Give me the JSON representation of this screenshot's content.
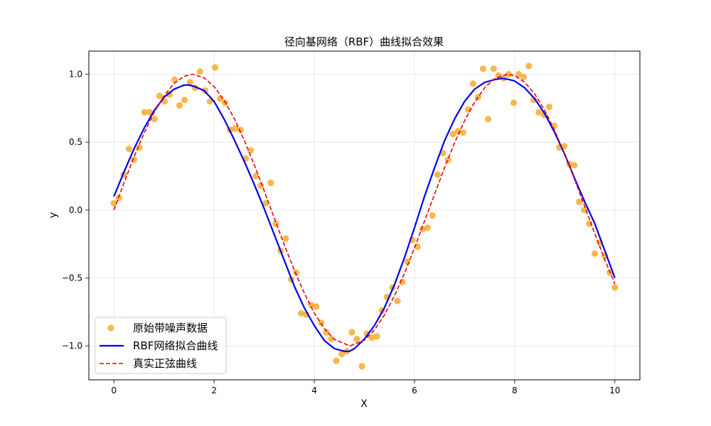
{
  "chart_data": {
    "type": "line",
    "title": "径向基网络（RBF）曲线拟合效果",
    "xlabel": "X",
    "ylabel": "y",
    "xlim": [
      -0.5,
      10.5
    ],
    "ylim": [
      -1.25,
      1.17
    ],
    "xticks": [
      0,
      2,
      4,
      6,
      8,
      10
    ],
    "xtick_labels": [
      "0",
      "2",
      "4",
      "6",
      "8",
      "10"
    ],
    "yticks": [
      -1.0,
      -0.5,
      0.0,
      0.5,
      1.0
    ],
    "ytick_labels": [
      "−1.0",
      "−0.5",
      "0.0",
      "0.5",
      "1.0"
    ],
    "grid": true,
    "legend_position": "lower-left",
    "colors": {
      "scatter": "#f5a623",
      "rbf": "#0000ee",
      "true": "#ee0000"
    },
    "legend": [
      {
        "label": "原始带噪声数据",
        "style": "scatter"
      },
      {
        "label": "RBF网络拟合曲线",
        "style": "rbf"
      },
      {
        "label": "真实正弦曲线",
        "style": "true"
      }
    ],
    "series": [
      {
        "name": "原始带噪声数据",
        "style": "scatter",
        "x": [
          0.0,
          0.1,
          0.2,
          0.3,
          0.4,
          0.51,
          0.61,
          0.71,
          0.81,
          0.91,
          1.01,
          1.11,
          1.21,
          1.31,
          1.41,
          1.52,
          1.62,
          1.72,
          1.82,
          1.92,
          2.02,
          2.12,
          2.22,
          2.32,
          2.42,
          2.53,
          2.63,
          2.73,
          2.83,
          2.93,
          3.03,
          3.13,
          3.23,
          3.33,
          3.43,
          3.54,
          3.64,
          3.74,
          3.84,
          3.94,
          4.04,
          4.14,
          4.24,
          4.34,
          4.44,
          4.55,
          4.65,
          4.75,
          4.85,
          4.95,
          5.05,
          5.15,
          5.25,
          5.35,
          5.45,
          5.56,
          5.66,
          5.76,
          5.86,
          5.96,
          6.06,
          6.16,
          6.26,
          6.36,
          6.46,
          6.57,
          6.67,
          6.77,
          6.87,
          6.97,
          7.07,
          7.17,
          7.27,
          7.37,
          7.47,
          7.58,
          7.68,
          7.78,
          7.88,
          7.98,
          8.08,
          8.18,
          8.28,
          8.38,
          8.48,
          8.59,
          8.69,
          8.79,
          8.89,
          8.99,
          9.09,
          9.19,
          9.29,
          9.39,
          9.49,
          9.6,
          9.7,
          9.8,
          9.9,
          10.0
        ],
        "y": [
          0.05,
          0.09,
          0.26,
          0.45,
          0.37,
          0.46,
          0.72,
          0.72,
          0.67,
          0.84,
          0.8,
          0.85,
          0.96,
          0.77,
          0.81,
          0.94,
          0.9,
          1.02,
          0.88,
          0.8,
          1.05,
          0.82,
          0.79,
          0.59,
          0.6,
          0.59,
          0.38,
          0.44,
          0.25,
          0.18,
          0.05,
          0.2,
          -0.1,
          -0.3,
          -0.21,
          -0.51,
          -0.46,
          -0.76,
          -0.77,
          -0.7,
          -0.71,
          -0.83,
          -0.9,
          -0.95,
          -1.11,
          -1.06,
          -1.04,
          -0.9,
          -0.95,
          -1.15,
          -0.91,
          -0.94,
          -0.93,
          -0.74,
          -0.64,
          -0.57,
          -0.67,
          -0.53,
          -0.38,
          -0.22,
          -0.27,
          -0.14,
          -0.13,
          -0.04,
          0.26,
          0.42,
          0.37,
          0.56,
          0.58,
          0.57,
          0.74,
          0.93,
          0.83,
          1.04,
          0.67,
          1.04,
          0.99,
          0.97,
          1.0,
          0.79,
          1.0,
          0.98,
          1.06,
          0.81,
          0.72,
          0.7,
          0.76,
          0.62,
          0.46,
          0.47,
          0.34,
          0.33,
          0.06,
          0.0,
          -0.1,
          -0.32,
          -0.24,
          -0.34,
          -0.46,
          -0.57
        ]
      },
      {
        "name": "RBF网络拟合曲线",
        "style": "rbf",
        "x": [
          0.0,
          0.2,
          0.4,
          0.6,
          0.8,
          1.0,
          1.2,
          1.4,
          1.5,
          1.6,
          1.8,
          2.0,
          2.2,
          2.4,
          2.6,
          2.8,
          3.0,
          3.2,
          3.4,
          3.6,
          3.8,
          4.0,
          4.2,
          4.4,
          4.6,
          4.7,
          4.8,
          5.0,
          5.2,
          5.4,
          5.6,
          5.8,
          6.0,
          6.2,
          6.4,
          6.6,
          6.8,
          7.0,
          7.2,
          7.4,
          7.6,
          7.75,
          7.9,
          8.0,
          8.2,
          8.4,
          8.6,
          8.8,
          9.0,
          9.2,
          9.4,
          9.6,
          9.8,
          10.0
        ],
        "y": [
          0.1,
          0.28,
          0.45,
          0.6,
          0.73,
          0.83,
          0.89,
          0.92,
          0.92,
          0.91,
          0.88,
          0.8,
          0.67,
          0.52,
          0.36,
          0.19,
          0.01,
          -0.18,
          -0.37,
          -0.56,
          -0.72,
          -0.85,
          -0.96,
          -1.02,
          -1.04,
          -1.04,
          -1.02,
          -0.95,
          -0.85,
          -0.72,
          -0.55,
          -0.35,
          -0.13,
          0.1,
          0.31,
          0.51,
          0.67,
          0.8,
          0.89,
          0.94,
          0.96,
          0.97,
          0.96,
          0.95,
          0.9,
          0.82,
          0.71,
          0.57,
          0.41,
          0.23,
          0.06,
          -0.1,
          -0.3,
          -0.5
        ]
      },
      {
        "name": "真实正弦曲线",
        "style": "true",
        "x": [
          0.0,
          0.2,
          0.4,
          0.6,
          0.8,
          1.0,
          1.2,
          1.4,
          1.5708,
          1.8,
          2.0,
          2.2,
          2.4,
          2.6,
          2.8,
          3.0,
          3.1416,
          3.4,
          3.6,
          3.8,
          4.0,
          4.2,
          4.4,
          4.7124,
          5.0,
          5.2,
          5.4,
          5.6,
          5.8,
          6.0,
          6.2832,
          6.6,
          6.8,
          7.0,
          7.2,
          7.4,
          7.6,
          7.854,
          8.0,
          8.2,
          8.4,
          8.6,
          8.8,
          9.0,
          9.2,
          9.4,
          9.6,
          9.8,
          10.0
        ],
        "y": [
          0.0,
          0.199,
          0.389,
          0.565,
          0.717,
          0.841,
          0.932,
          0.985,
          1.0,
          0.974,
          0.909,
          0.808,
          0.675,
          0.516,
          0.335,
          0.141,
          0.0,
          -0.256,
          -0.443,
          -0.612,
          -0.757,
          -0.872,
          -0.952,
          -1.0,
          -0.959,
          -0.883,
          -0.773,
          -0.631,
          -0.465,
          -0.279,
          0.0,
          0.312,
          0.494,
          0.657,
          0.794,
          0.899,
          0.968,
          1.0,
          0.989,
          0.941,
          0.855,
          0.734,
          0.585,
          0.412,
          0.223,
          0.025,
          -0.175,
          -0.366,
          -0.544
        ]
      }
    ]
  }
}
